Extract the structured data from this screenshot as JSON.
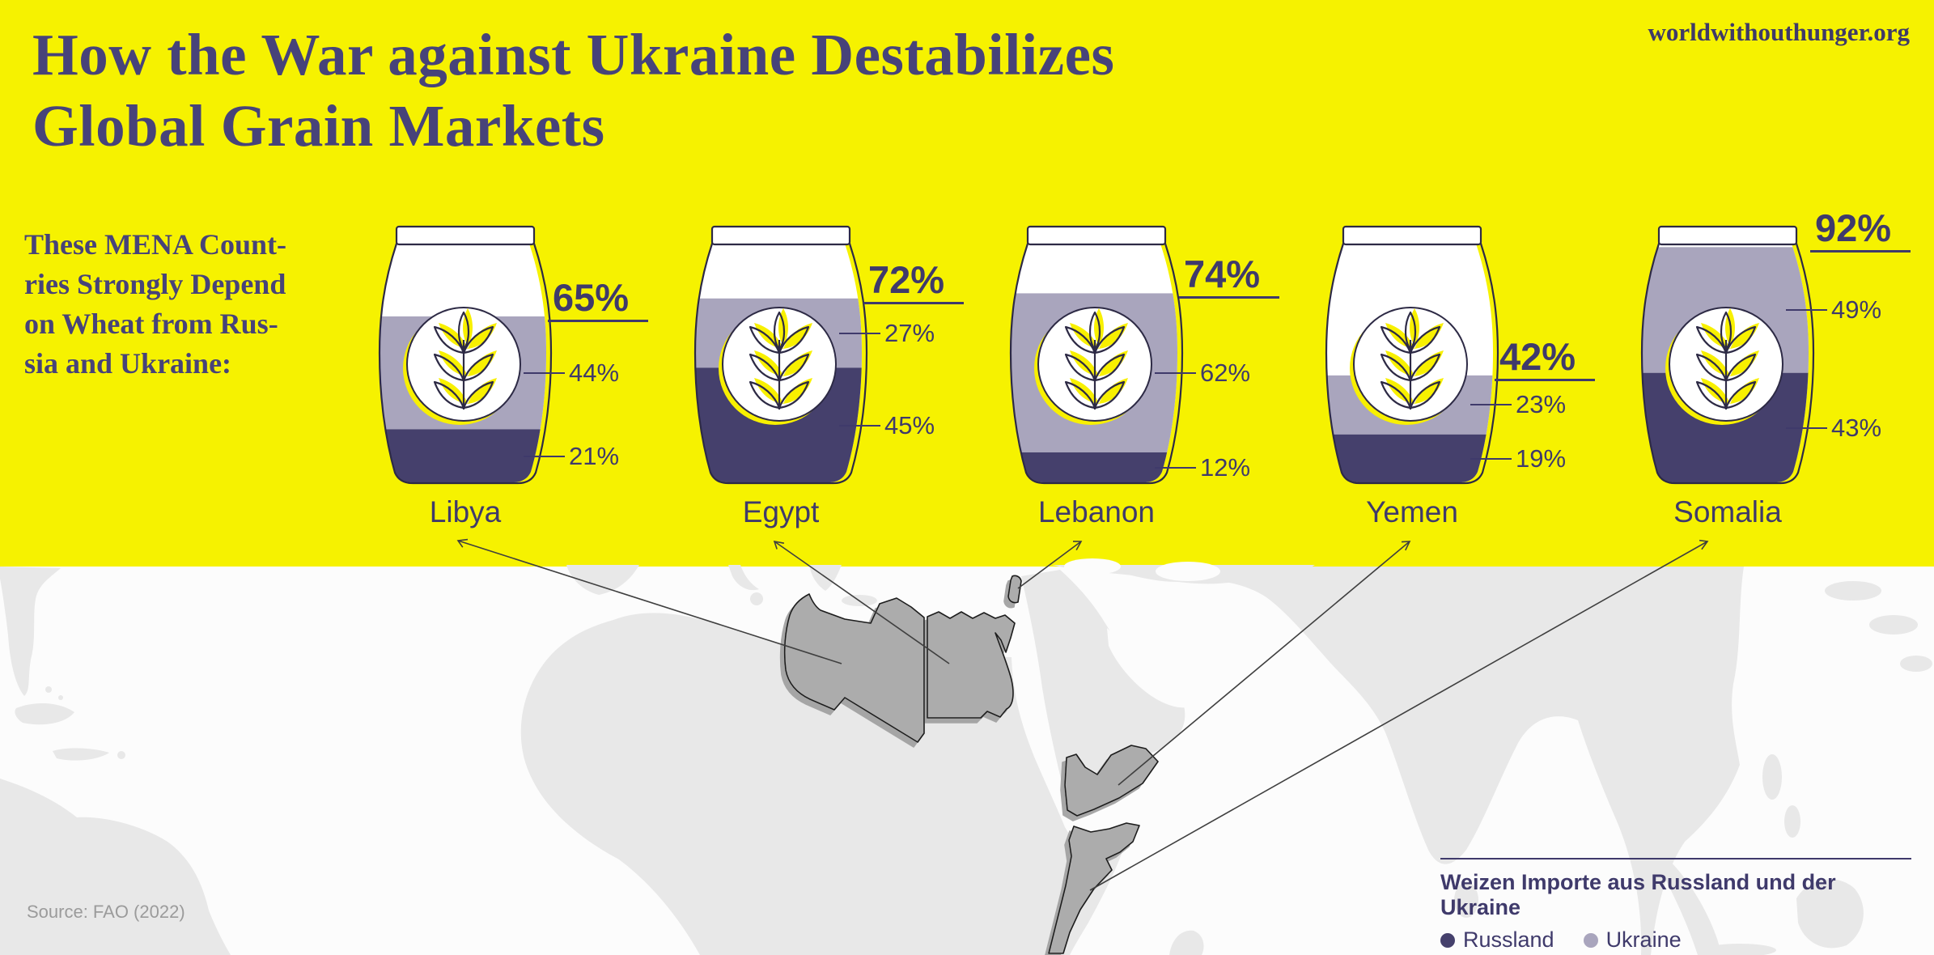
{
  "brand": {
    "url": "worldwithouthunger.org"
  },
  "header": {
    "title_lines": [
      "How the War against Ukraine Destabilizes",
      "Global Grain Markets"
    ]
  },
  "intro": {
    "lines": [
      "These MENA Count-",
      "ries Strongly Depend",
      "on Wheat from Rus-",
      "sia and Ukraine:"
    ]
  },
  "chart_data": {
    "type": "bar",
    "subtype": "stacked-jar-pictogram",
    "unit": "%",
    "categories": [
      "Libya",
      "Egypt",
      "Lebanon",
      "Yemen",
      "Somalia"
    ],
    "series": [
      {
        "name": "Russland",
        "color": "#45406c",
        "values": [
          21,
          45,
          12,
          19,
          43
        ]
      },
      {
        "name": "Ukraine",
        "color": "#a9a5bd",
        "values": [
          44,
          27,
          62,
          23,
          49
        ]
      }
    ],
    "totals": [
      65,
      72,
      74,
      42,
      92
    ],
    "value_suffix": "%",
    "legend_position": "bottom-right",
    "grid": false
  },
  "legend": {
    "title": "Weizen Importe aus Russland und der Ukraine",
    "items": [
      {
        "label": "Russland",
        "color": "#45406c"
      },
      {
        "label": "Ukraine",
        "color": "#a9a5bd"
      }
    ]
  },
  "source": {
    "text": "Source: FAO (2022)"
  },
  "map": {
    "highlighted_countries": [
      "Libya",
      "Egypt",
      "Lebanon",
      "Yemen",
      "Somalia"
    ]
  },
  "colors": {
    "background_yellow": "#f6f200",
    "title_text": "#474379",
    "label_text": "#3f3a6b",
    "russia_band": "#45406c",
    "ukraine_band": "#a9a5bd",
    "wheat_yellow": "#f8f000",
    "outline_dark": "#2d2a45",
    "map_land": "#e8e8e8",
    "map_highlight": "#acacac",
    "ocean": "#fcfcfc",
    "source_text": "#9b9b9b",
    "arrow": "#3f3f3f"
  }
}
